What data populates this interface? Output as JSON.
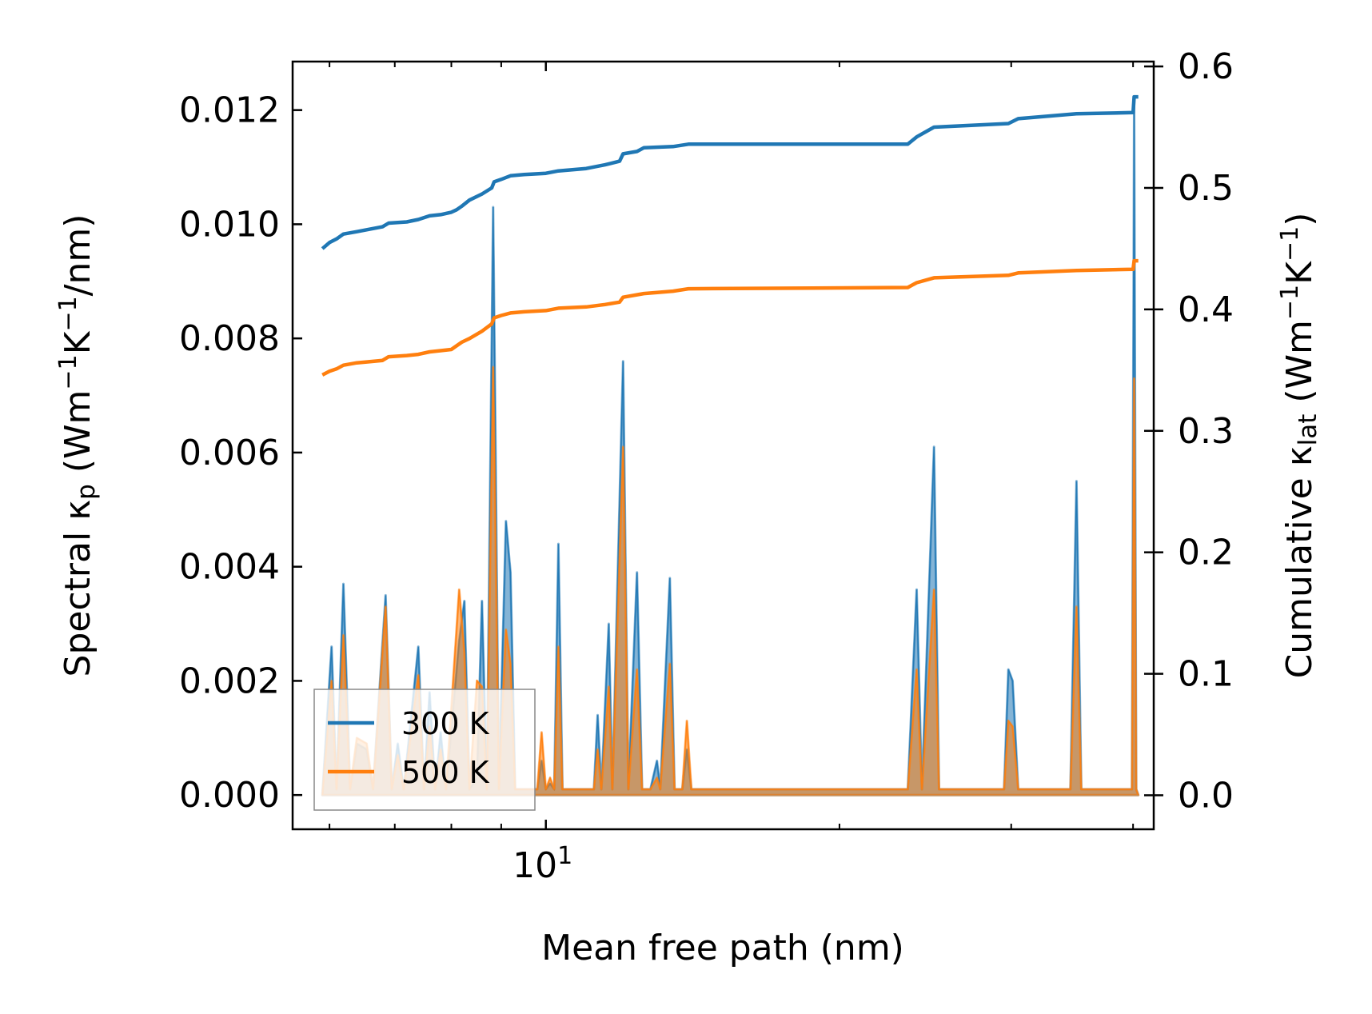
{
  "chart_data": {
    "type": "line",
    "title": "",
    "xlabel": "Mean free path (nm)",
    "xscale": "log",
    "xlim": [
      5.5,
      42
    ],
    "x_ticks": [
      {
        "value": 10,
        "base": "10",
        "exp": "1"
      }
    ],
    "x_minor_ticks": [
      6,
      7,
      8,
      9,
      20,
      30,
      40
    ],
    "ylabel": {
      "prefix": "Spectral κ",
      "sub": "p",
      "units": " (Wm",
      "sup1": "−1",
      "mid": "K",
      "sup2": "−1",
      "suffix": "/nm)"
    },
    "ylim": [
      -0.0006,
      0.01285
    ],
    "y_ticks": [
      "0.000",
      "0.002",
      "0.004",
      "0.006",
      "0.008",
      "0.010",
      "0.012"
    ],
    "y2label": {
      "prefix": "Cumulative κ",
      "sub": "lat",
      "units": " (Wm",
      "sup1": "−1",
      "mid": "K",
      "sup2": "−1",
      "suffix": ")"
    },
    "y2lim": [
      -0.028,
      0.604
    ],
    "y2_ticks": [
      "0.0",
      "0.1",
      "0.2",
      "0.3",
      "0.4",
      "0.5",
      "0.6"
    ],
    "legend_position": "lower-left",
    "series": [
      {
        "name": "300 K",
        "color": "#1f77b4",
        "spectral": [
          [
            5.9,
            0
          ],
          [
            6.03,
            0.0026
          ],
          [
            6.1,
            0.0001
          ],
          [
            6.2,
            0.0037
          ],
          [
            6.3,
            0.0001
          ],
          [
            6.4,
            0.0009
          ],
          [
            6.55,
            0.0008
          ],
          [
            6.65,
            0.0001
          ],
          [
            6.85,
            0.0035
          ],
          [
            6.95,
            0.0001
          ],
          [
            7.05,
            0.0009
          ],
          [
            7.15,
            0.0001
          ],
          [
            7.4,
            0.0026
          ],
          [
            7.5,
            0.0001
          ],
          [
            7.6,
            0.0018
          ],
          [
            7.7,
            0.0001
          ],
          [
            7.8,
            0.0011
          ],
          [
            7.9,
            0.0001
          ],
          [
            8.15,
            0.0027
          ],
          [
            8.25,
            0.0034
          ],
          [
            8.35,
            0.0001
          ],
          [
            8.5,
            0.0003
          ],
          [
            8.6,
            0.0034
          ],
          [
            8.7,
            0.0001
          ],
          [
            8.83,
            0.0103
          ],
          [
            8.95,
            0.0001
          ],
          [
            9.1,
            0.0048
          ],
          [
            9.2,
            0.0039
          ],
          [
            9.3,
            0.0001
          ],
          [
            9.8,
            0.0001
          ],
          [
            9.9,
            0.0006
          ],
          [
            10.0,
            0.0001
          ],
          [
            10.1,
            0.0002
          ],
          [
            10.2,
            0.0001
          ],
          [
            10.3,
            0.0044
          ],
          [
            10.4,
            0.0001
          ],
          [
            11.2,
            0.0001
          ],
          [
            11.3,
            0.0014
          ],
          [
            11.4,
            0.0001
          ],
          [
            11.6,
            0.003
          ],
          [
            11.7,
            0.0001
          ],
          [
            12.0,
            0.0076
          ],
          [
            12.15,
            0.0001
          ],
          [
            12.4,
            0.0039
          ],
          [
            12.55,
            0.0001
          ],
          [
            12.8,
            0.0001
          ],
          [
            13.0,
            0.0006
          ],
          [
            13.1,
            0.0001
          ],
          [
            13.4,
            0.0038
          ],
          [
            13.55,
            0.0001
          ],
          [
            13.8,
            0.0001
          ],
          [
            13.95,
            0.0008
          ],
          [
            14.1,
            0.0001
          ],
          [
            23.5,
            0.0001
          ],
          [
            24.0,
            0.0036
          ],
          [
            24.3,
            0.0001
          ],
          [
            25.0,
            0.0061
          ],
          [
            25.3,
            0.0001
          ],
          [
            29.5,
            0.0001
          ],
          [
            29.8,
            0.0022
          ],
          [
            30.1,
            0.002
          ],
          [
            30.5,
            0.0001
          ],
          [
            34.5,
            0.0001
          ],
          [
            35.0,
            0.0055
          ],
          [
            35.4,
            0.0001
          ],
          [
            39.9,
            0.0001
          ],
          [
            40.1,
            0.0122
          ],
          [
            40.3,
            0.0001
          ],
          [
            40.5,
            0
          ]
        ],
        "cumulative": [
          [
            5.9,
            0.45
          ],
          [
            6.0,
            0.455
          ],
          [
            6.1,
            0.458
          ],
          [
            6.2,
            0.462
          ],
          [
            6.4,
            0.464
          ],
          [
            6.6,
            0.466
          ],
          [
            6.8,
            0.468
          ],
          [
            6.9,
            0.471
          ],
          [
            7.2,
            0.472
          ],
          [
            7.4,
            0.474
          ],
          [
            7.6,
            0.477
          ],
          [
            7.8,
            0.478
          ],
          [
            8.0,
            0.48
          ],
          [
            8.1,
            0.482
          ],
          [
            8.2,
            0.485
          ],
          [
            8.35,
            0.49
          ],
          [
            8.6,
            0.495
          ],
          [
            8.8,
            0.5
          ],
          [
            8.85,
            0.505
          ],
          [
            9.0,
            0.507
          ],
          [
            9.2,
            0.51
          ],
          [
            9.5,
            0.511
          ],
          [
            10.0,
            0.512
          ],
          [
            10.3,
            0.514
          ],
          [
            11.0,
            0.516
          ],
          [
            11.5,
            0.519
          ],
          [
            11.9,
            0.522
          ],
          [
            12.0,
            0.528
          ],
          [
            12.4,
            0.53
          ],
          [
            12.6,
            0.533
          ],
          [
            13.5,
            0.534
          ],
          [
            14.0,
            0.536
          ],
          [
            23.5,
            0.536
          ],
          [
            24.0,
            0.542
          ],
          [
            25.0,
            0.55
          ],
          [
            29.8,
            0.553
          ],
          [
            30.5,
            0.557
          ],
          [
            35.0,
            0.561
          ],
          [
            40.0,
            0.562
          ],
          [
            40.1,
            0.575
          ],
          [
            40.5,
            0.575
          ]
        ]
      },
      {
        "name": "500 K",
        "color": "#ff7f0e",
        "spectral": [
          [
            5.9,
            0
          ],
          [
            6.03,
            0.002
          ],
          [
            6.1,
            0.0001
          ],
          [
            6.2,
            0.0028
          ],
          [
            6.3,
            0.0001
          ],
          [
            6.4,
            0.001
          ],
          [
            6.55,
            0.0009
          ],
          [
            6.65,
            0.0001
          ],
          [
            6.85,
            0.0033
          ],
          [
            6.95,
            0.0001
          ],
          [
            7.05,
            0.0007
          ],
          [
            7.15,
            0.0001
          ],
          [
            7.4,
            0.0021
          ],
          [
            7.5,
            0.0001
          ],
          [
            7.6,
            0.0012
          ],
          [
            7.7,
            0.0001
          ],
          [
            7.8,
            0.0008
          ],
          [
            7.9,
            0.0001
          ],
          [
            8.15,
            0.0036
          ],
          [
            8.25,
            0.0025
          ],
          [
            8.35,
            0.0001
          ],
          [
            8.5,
            0.002
          ],
          [
            8.6,
            0.0019
          ],
          [
            8.7,
            0.0001
          ],
          [
            8.83,
            0.0075
          ],
          [
            8.95,
            0.0001
          ],
          [
            9.1,
            0.0029
          ],
          [
            9.2,
            0.0023
          ],
          [
            9.3,
            0.0001
          ],
          [
            9.8,
            0.0001
          ],
          [
            9.9,
            0.0011
          ],
          [
            10.0,
            0.0001
          ],
          [
            10.1,
            0.0003
          ],
          [
            10.2,
            0.0001
          ],
          [
            10.3,
            0.0026
          ],
          [
            10.4,
            0.0001
          ],
          [
            11.2,
            0.0001
          ],
          [
            11.3,
            0.0008
          ],
          [
            11.4,
            0.0001
          ],
          [
            11.6,
            0.0019
          ],
          [
            11.7,
            0.0001
          ],
          [
            12.0,
            0.0061
          ],
          [
            12.15,
            0.0001
          ],
          [
            12.4,
            0.0022
          ],
          [
            12.55,
            0.0001
          ],
          [
            12.8,
            0.0001
          ],
          [
            13.0,
            0.0003
          ],
          [
            13.1,
            0.0001
          ],
          [
            13.4,
            0.0023
          ],
          [
            13.55,
            0.0001
          ],
          [
            13.8,
            0.0001
          ],
          [
            13.95,
            0.0013
          ],
          [
            14.1,
            0.0001
          ],
          [
            23.5,
            0.0001
          ],
          [
            24.0,
            0.0022
          ],
          [
            24.3,
            0.0001
          ],
          [
            25.0,
            0.0036
          ],
          [
            25.3,
            0.0001
          ],
          [
            29.5,
            0.0001
          ],
          [
            29.8,
            0.0013
          ],
          [
            30.1,
            0.0012
          ],
          [
            30.5,
            0.0001
          ],
          [
            34.5,
            0.0001
          ],
          [
            35.0,
            0.0033
          ],
          [
            35.4,
            0.0001
          ],
          [
            39.9,
            0.0001
          ],
          [
            40.1,
            0.0073
          ],
          [
            40.3,
            0.0001
          ],
          [
            40.5,
            0
          ]
        ],
        "cumulative": [
          [
            5.9,
            0.346
          ],
          [
            6.0,
            0.349
          ],
          [
            6.1,
            0.351
          ],
          [
            6.2,
            0.354
          ],
          [
            6.4,
            0.356
          ],
          [
            6.6,
            0.357
          ],
          [
            6.8,
            0.358
          ],
          [
            6.9,
            0.361
          ],
          [
            7.2,
            0.362
          ],
          [
            7.4,
            0.363
          ],
          [
            7.6,
            0.365
          ],
          [
            7.8,
            0.366
          ],
          [
            8.0,
            0.367
          ],
          [
            8.1,
            0.37
          ],
          [
            8.2,
            0.373
          ],
          [
            8.35,
            0.376
          ],
          [
            8.6,
            0.382
          ],
          [
            8.8,
            0.388
          ],
          [
            8.85,
            0.393
          ],
          [
            9.0,
            0.395
          ],
          [
            9.2,
            0.397
          ],
          [
            9.5,
            0.398
          ],
          [
            10.0,
            0.399
          ],
          [
            10.3,
            0.401
          ],
          [
            11.0,
            0.402
          ],
          [
            11.5,
            0.404
          ],
          [
            11.9,
            0.406
          ],
          [
            12.0,
            0.41
          ],
          [
            12.4,
            0.412
          ],
          [
            12.6,
            0.413
          ],
          [
            13.5,
            0.415
          ],
          [
            14.0,
            0.417
          ],
          [
            23.5,
            0.418
          ],
          [
            24.0,
            0.422
          ],
          [
            25.0,
            0.426
          ],
          [
            29.8,
            0.428
          ],
          [
            30.5,
            0.43
          ],
          [
            35.0,
            0.432
          ],
          [
            40.0,
            0.433
          ],
          [
            40.1,
            0.44
          ],
          [
            40.5,
            0.44
          ]
        ]
      }
    ]
  }
}
